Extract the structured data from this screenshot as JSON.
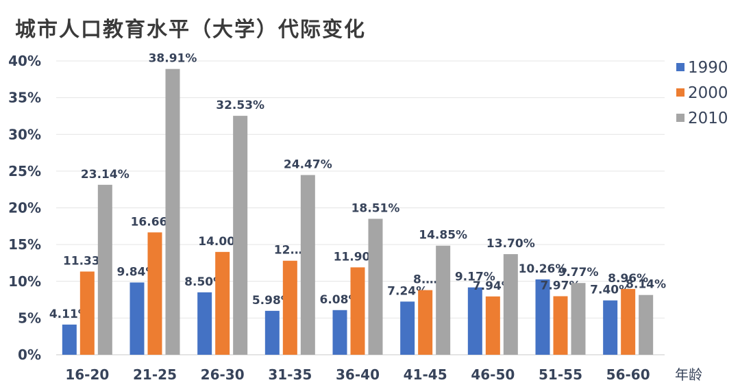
{
  "chart_data": {
    "type": "bar",
    "title": "城市人口教育水平（大学）代际变化",
    "xlabel": "年龄",
    "ylabel": "",
    "ylim": [
      0,
      40
    ],
    "yticks": [
      "0%",
      "5%",
      "10%",
      "15%",
      "20%",
      "25%",
      "30%",
      "35%",
      "40%"
    ],
    "grid": true,
    "legend": "right",
    "categories": [
      "16-20",
      "21-25",
      "26-30",
      "31-35",
      "36-40",
      "41-45",
      "46-50",
      "51-55",
      "56-60"
    ],
    "series": [
      {
        "name": "1990",
        "color": "#4472c4",
        "values": [
          4.11,
          9.84,
          8.5,
          5.98,
          6.08,
          7.24,
          9.17,
          10.26,
          7.4
        ],
        "labels": [
          "4.11%",
          "9.84%",
          "8.50%",
          "5.98%",
          "6.08%",
          "7.24%",
          "9.17%",
          "10.26%",
          "7.40%"
        ]
      },
      {
        "name": "2000",
        "color": "#ed7d31",
        "values": [
          11.33,
          16.66,
          14.0,
          12.8,
          11.9,
          8.8,
          7.94,
          7.97,
          8.96
        ],
        "labels": [
          "11.33%",
          "16.66%",
          "14.00%",
          "12.…",
          "11.90%",
          "8.…",
          "7.94%",
          "7.97%",
          "8.96%"
        ]
      },
      {
        "name": "2010",
        "color": "#a5a5a5",
        "values": [
          23.14,
          38.91,
          32.53,
          24.47,
          18.51,
          14.85,
          13.7,
          9.77,
          8.14
        ],
        "labels": [
          "23.14%",
          "38.91%",
          "32.53%",
          "24.47%",
          "18.51%",
          "14.85%",
          "13.70%",
          "9.77%",
          "8.14%"
        ]
      }
    ]
  }
}
